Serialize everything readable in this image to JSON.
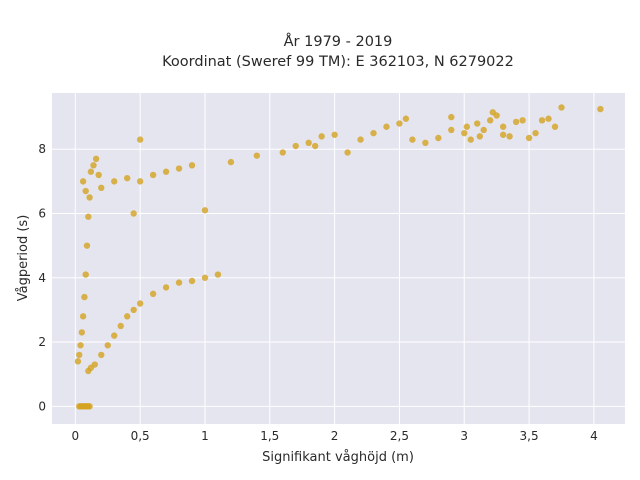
{
  "chart_data": {
    "type": "scatter",
    "title_line1": "År 1979 - 2019",
    "title_line2": "Koordinat (Sweref 99 TM): E 362103, N 6279022",
    "xlabel": "Signifikant våghöjd (m)",
    "ylabel": "Vågperiod (s)",
    "xlim": [
      -0.18,
      4.24
    ],
    "ylim": [
      -0.55,
      9.75
    ],
    "x_ticks": [
      0,
      0.5,
      1,
      1.5,
      2,
      2.5,
      3,
      3.5,
      4
    ],
    "x_tick_labels": [
      "0",
      "0,5",
      "1",
      "1,5",
      "2",
      "2,5",
      "3",
      "3,5",
      "4"
    ],
    "y_ticks": [
      0,
      2,
      4,
      6,
      8
    ],
    "y_tick_labels": [
      "0",
      "2",
      "4",
      "6",
      "8"
    ],
    "grid": true,
    "background": "#e5e5f0",
    "series": [
      {
        "color": "#d4a221",
        "points": [
          [
            0.02,
            1.4
          ],
          [
            0.03,
            1.6
          ],
          [
            0.04,
            1.9
          ],
          [
            0.05,
            2.3
          ],
          [
            0.06,
            2.8
          ],
          [
            0.07,
            3.4
          ],
          [
            0.08,
            4.1
          ],
          [
            0.09,
            5.0
          ],
          [
            0.1,
            5.9
          ],
          [
            0.11,
            6.5
          ],
          [
            0.12,
            7.3
          ],
          [
            0.14,
            7.5
          ],
          [
            0.16,
            7.7
          ],
          [
            0.18,
            7.2
          ],
          [
            0.08,
            6.7
          ],
          [
            0.06,
            7.0
          ],
          [
            0.1,
            1.1
          ],
          [
            0.12,
            1.2
          ],
          [
            0.15,
            1.3
          ],
          [
            0.2,
            1.6
          ],
          [
            0.25,
            1.9
          ],
          [
            0.3,
            2.2
          ],
          [
            0.35,
            2.5
          ],
          [
            0.4,
            2.8
          ],
          [
            0.45,
            3.0
          ],
          [
            0.5,
            3.2
          ],
          [
            0.6,
            3.5
          ],
          [
            0.7,
            3.7
          ],
          [
            0.8,
            3.85
          ],
          [
            0.9,
            3.9
          ],
          [
            1.0,
            4.0
          ],
          [
            1.1,
            4.1
          ],
          [
            0.2,
            6.8
          ],
          [
            0.3,
            7.0
          ],
          [
            0.4,
            7.1
          ],
          [
            0.5,
            7.0
          ],
          [
            0.6,
            7.2
          ],
          [
            0.7,
            7.3
          ],
          [
            0.8,
            7.4
          ],
          [
            0.9,
            7.5
          ],
          [
            0.5,
            8.3
          ],
          [
            0.45,
            6.0
          ],
          [
            1.0,
            6.1
          ],
          [
            1.2,
            7.6
          ],
          [
            1.4,
            7.8
          ],
          [
            1.6,
            7.9
          ],
          [
            1.7,
            8.1
          ],
          [
            1.8,
            8.2
          ],
          [
            1.9,
            8.4
          ],
          [
            2.0,
            8.45
          ],
          [
            1.85,
            8.1
          ],
          [
            2.1,
            7.9
          ],
          [
            2.2,
            8.3
          ],
          [
            2.3,
            8.5
          ],
          [
            2.4,
            8.7
          ],
          [
            2.5,
            8.8
          ],
          [
            2.6,
            8.3
          ],
          [
            2.7,
            8.2
          ],
          [
            2.8,
            8.35
          ],
          [
            2.9,
            8.6
          ],
          [
            3.0,
            8.5
          ],
          [
            3.05,
            8.3
          ],
          [
            3.1,
            8.8
          ],
          [
            3.15,
            8.6
          ],
          [
            3.2,
            8.9
          ],
          [
            3.25,
            9.05
          ],
          [
            3.3,
            8.7
          ],
          [
            3.35,
            8.4
          ],
          [
            3.4,
            8.85
          ],
          [
            3.45,
            8.9
          ],
          [
            3.5,
            8.35
          ],
          [
            3.55,
            8.5
          ],
          [
            3.6,
            8.9
          ],
          [
            3.65,
            8.95
          ],
          [
            3.7,
            8.7
          ],
          [
            3.75,
            9.3
          ],
          [
            4.05,
            9.25
          ],
          [
            2.9,
            9.0
          ],
          [
            3.22,
            9.15
          ],
          [
            2.55,
            8.95
          ],
          [
            3.02,
            8.7
          ],
          [
            3.12,
            8.4
          ],
          [
            3.3,
            8.45
          ],
          [
            0.03,
            0.0
          ],
          [
            0.04,
            0.0
          ],
          [
            0.05,
            0.0
          ],
          [
            0.06,
            0.0
          ],
          [
            0.07,
            0.0
          ],
          [
            0.08,
            0.0
          ],
          [
            0.09,
            0.0
          ],
          [
            0.1,
            0.0
          ],
          [
            0.11,
            0.0
          ]
        ]
      }
    ]
  }
}
